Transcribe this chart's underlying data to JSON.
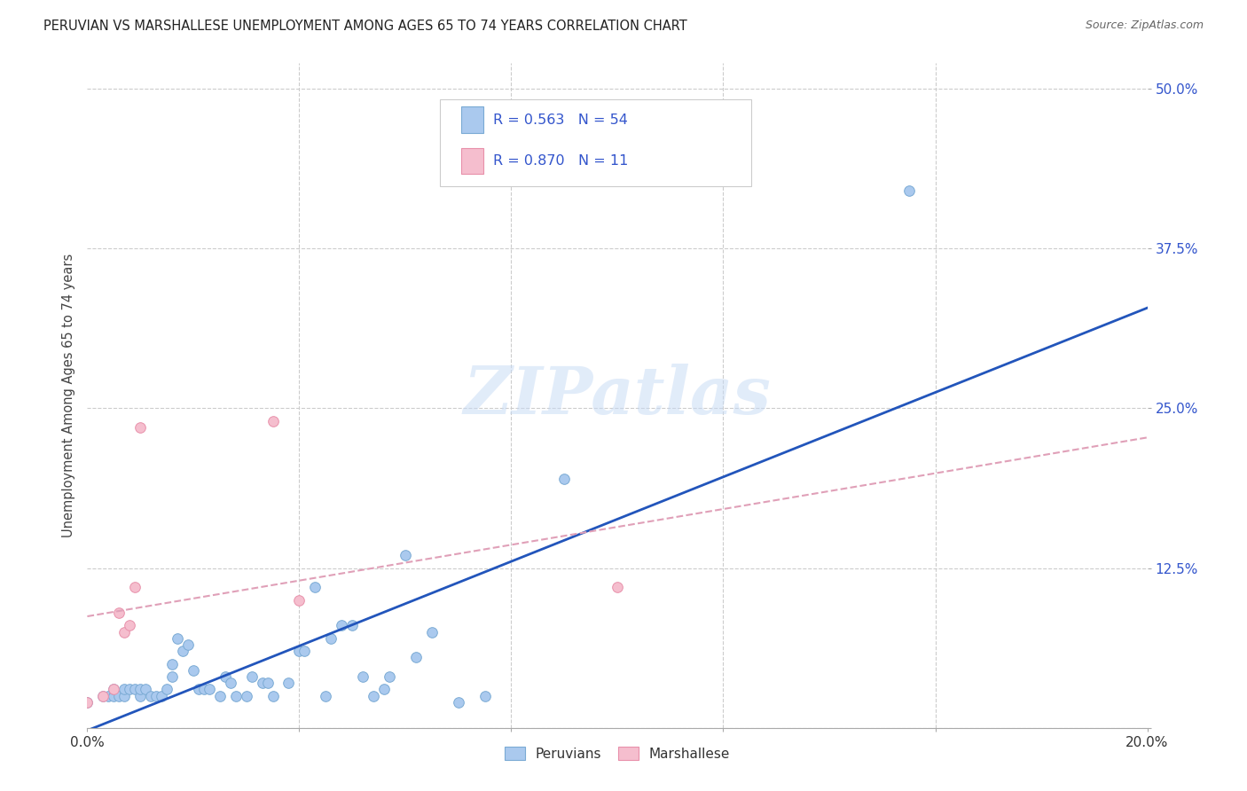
{
  "title": "PERUVIAN VS MARSHALLESE UNEMPLOYMENT AMONG AGES 65 TO 74 YEARS CORRELATION CHART",
  "source": "Source: ZipAtlas.com",
  "ylabel": "Unemployment Among Ages 65 to 74 years",
  "xlim": [
    0.0,
    0.2
  ],
  "ylim": [
    0.0,
    0.52
  ],
  "xticks": [
    0.0,
    0.04,
    0.08,
    0.12,
    0.16,
    0.2
  ],
  "yticks": [
    0.0,
    0.125,
    0.25,
    0.375,
    0.5
  ],
  "ytick_labels": [
    "",
    "12.5%",
    "25.0%",
    "37.5%",
    "50.0%"
  ],
  "xtick_labels": [
    "0.0%",
    "",
    "",
    "",
    "",
    "20.0%"
  ],
  "background_color": "#ffffff",
  "grid_color": "#cccccc",
  "peruvian_color": "#aac9ee",
  "peruvian_edge_color": "#7aaad4",
  "marshallese_color": "#f5bece",
  "marshallese_edge_color": "#e890aa",
  "peruvian_line_color": "#2255bb",
  "marshallese_line_color": "#e0a0b8",
  "peruvian_R": 0.563,
  "peruvian_N": 54,
  "marshallese_R": 0.87,
  "marshallese_N": 11,
  "legend_text_color": "#3355cc",
  "watermark": "ZIPatlas",
  "peruvian_x": [
    0.0,
    0.003,
    0.004,
    0.005,
    0.005,
    0.006,
    0.007,
    0.007,
    0.008,
    0.009,
    0.01,
    0.01,
    0.011,
    0.012,
    0.013,
    0.014,
    0.015,
    0.016,
    0.016,
    0.017,
    0.018,
    0.019,
    0.02,
    0.021,
    0.022,
    0.023,
    0.025,
    0.026,
    0.027,
    0.028,
    0.03,
    0.031,
    0.033,
    0.034,
    0.035,
    0.038,
    0.04,
    0.041,
    0.043,
    0.045,
    0.046,
    0.048,
    0.05,
    0.052,
    0.054,
    0.056,
    0.057,
    0.06,
    0.062,
    0.065,
    0.07,
    0.075,
    0.09,
    0.155
  ],
  "peruvian_y": [
    0.02,
    0.025,
    0.025,
    0.025,
    0.03,
    0.025,
    0.025,
    0.03,
    0.03,
    0.03,
    0.025,
    0.03,
    0.03,
    0.025,
    0.025,
    0.025,
    0.03,
    0.04,
    0.05,
    0.07,
    0.06,
    0.065,
    0.045,
    0.03,
    0.03,
    0.03,
    0.025,
    0.04,
    0.035,
    0.025,
    0.025,
    0.04,
    0.035,
    0.035,
    0.025,
    0.035,
    0.06,
    0.06,
    0.11,
    0.025,
    0.07,
    0.08,
    0.08,
    0.04,
    0.025,
    0.03,
    0.04,
    0.135,
    0.055,
    0.075,
    0.02,
    0.025,
    0.195,
    0.42
  ],
  "marshallese_x": [
    0.0,
    0.003,
    0.005,
    0.006,
    0.007,
    0.008,
    0.009,
    0.01,
    0.035,
    0.04,
    0.1
  ],
  "marshallese_y": [
    0.02,
    0.025,
    0.03,
    0.09,
    0.075,
    0.08,
    0.11,
    0.235,
    0.24,
    0.1,
    0.11
  ]
}
